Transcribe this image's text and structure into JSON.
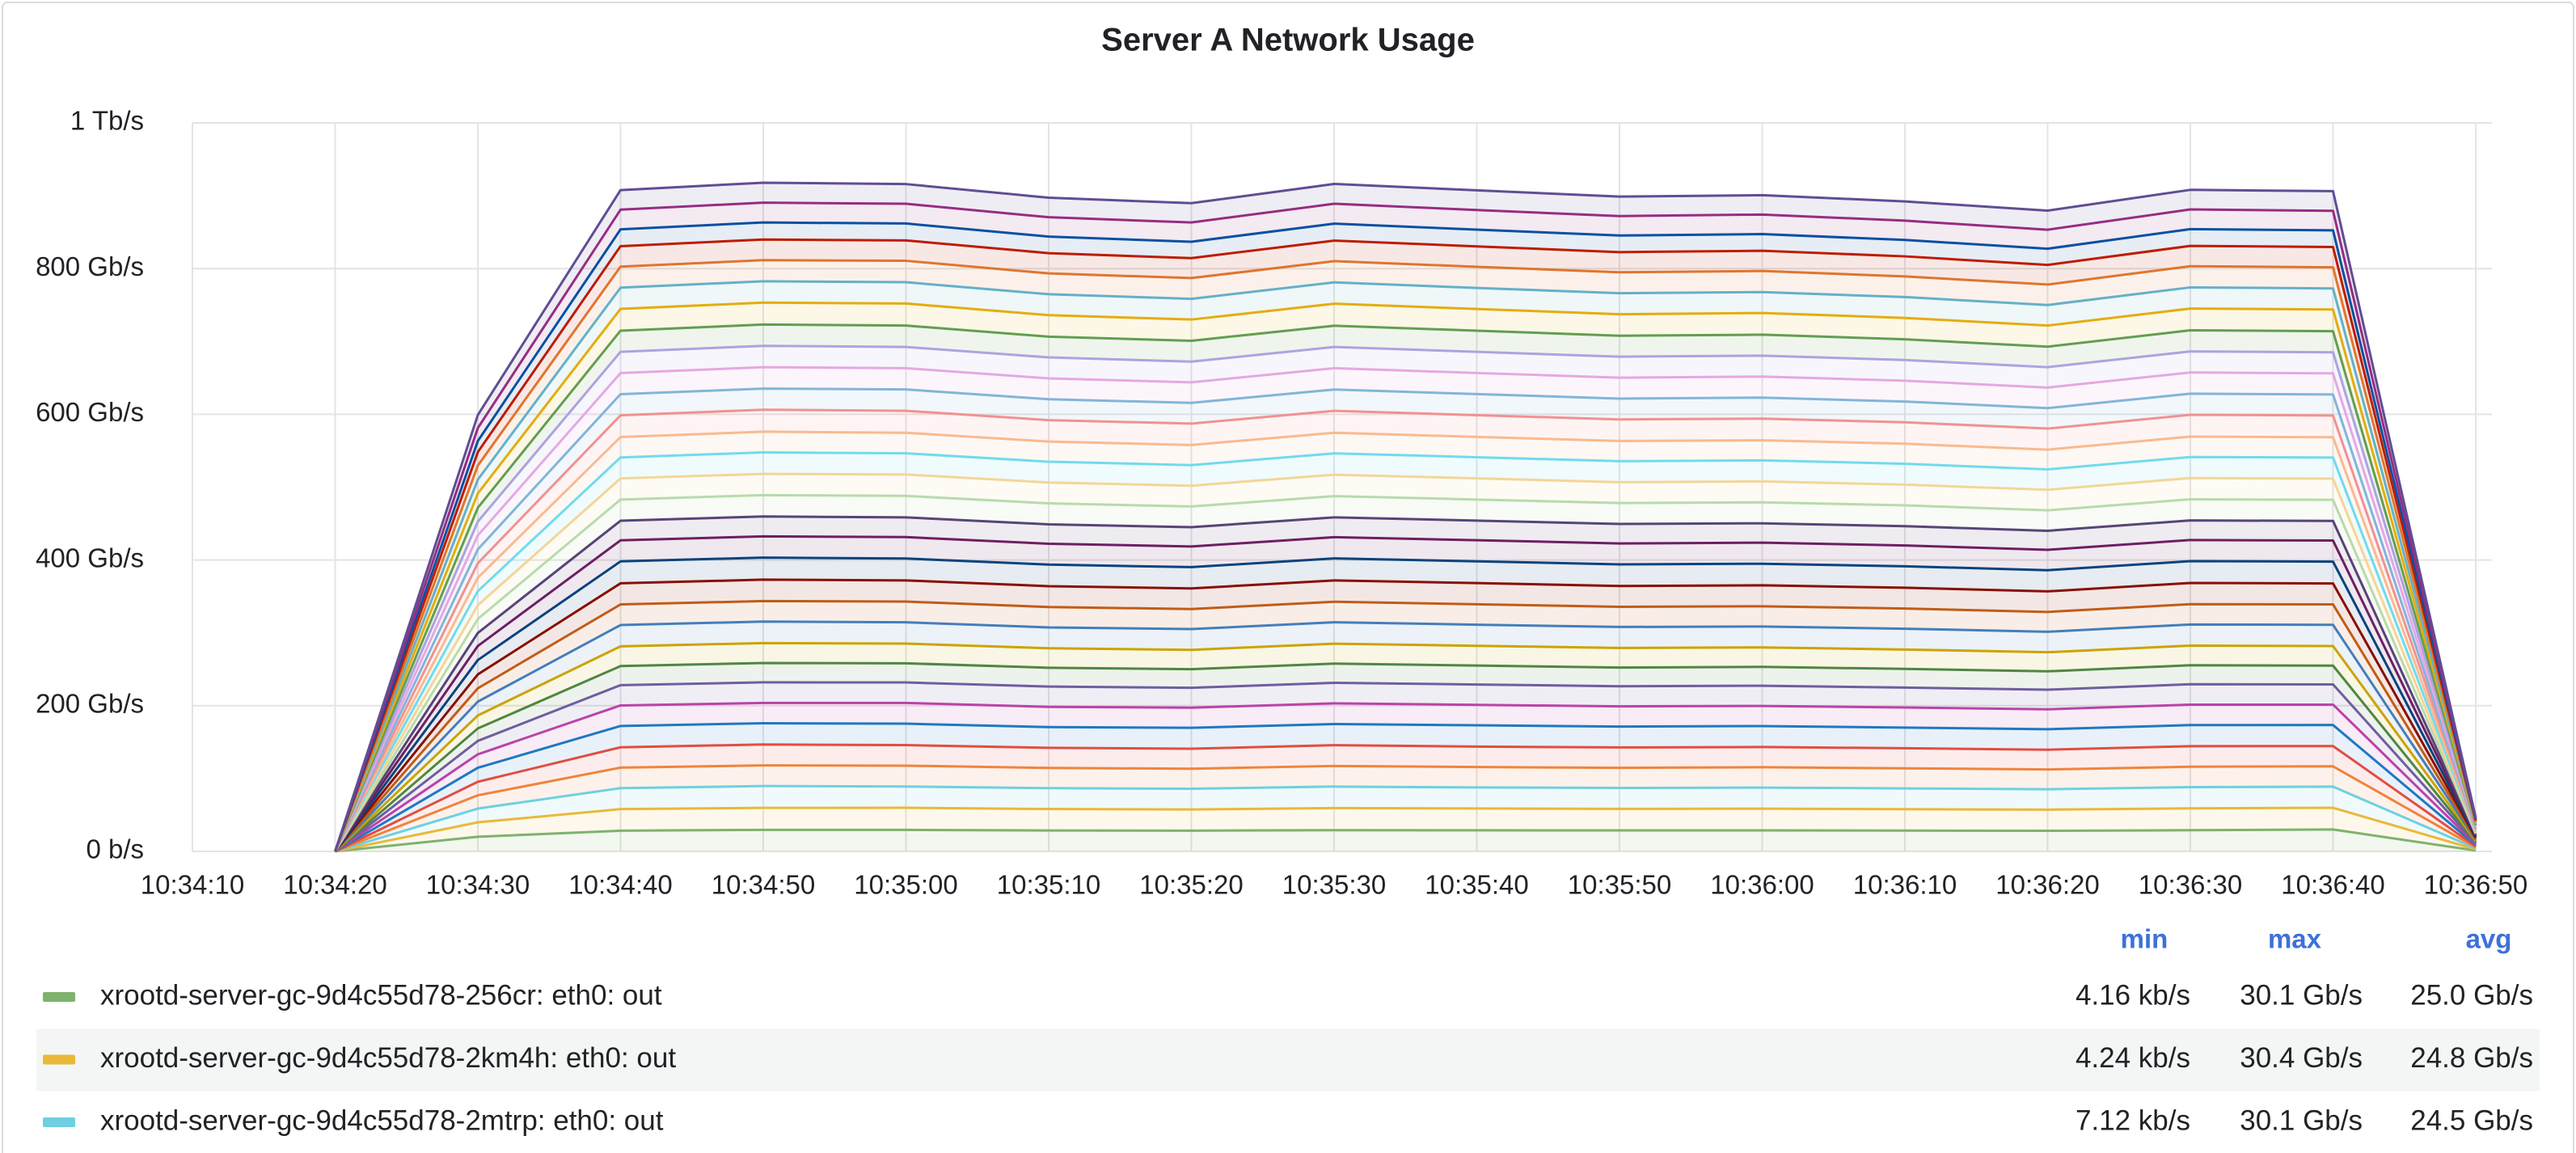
{
  "chart_data": {
    "type": "stacked-area",
    "title": "Server A Network Usage",
    "x": [
      "10:34:20",
      "10:34:30",
      "10:34:40",
      "10:34:50",
      "10:35:00",
      "10:35:10",
      "10:35:20",
      "10:35:30",
      "10:35:40",
      "10:35:50",
      "10:36:00",
      "10:36:10",
      "10:36:20",
      "10:36:30",
      "10:36:40",
      "10:36:50"
    ],
    "xlim": [
      "10:34:10",
      "10:36:50"
    ],
    "xticks": [
      "10:34:10",
      "10:34:20",
      "10:34:30",
      "10:34:40",
      "10:34:50",
      "10:35:00",
      "10:35:10",
      "10:35:20",
      "10:35:30",
      "10:35:40",
      "10:35:50",
      "10:36:00",
      "10:36:10",
      "10:36:20",
      "10:36:30",
      "10:36:40",
      "10:36:50"
    ],
    "ylim": [
      0,
      1000
    ],
    "yticks": [
      {
        "value": 0,
        "label": "0 b/s"
      },
      {
        "value": 200,
        "label": "200 Gb/s"
      },
      {
        "value": 400,
        "label": "400 Gb/s"
      },
      {
        "value": 600,
        "label": "600 Gb/s"
      },
      {
        "value": 800,
        "label": "800 Gb/s"
      },
      {
        "value": 1000,
        "label": "1 Tb/s"
      }
    ],
    "grid": true,
    "fill_opacity": 0.1,
    "legend_columns": [
      "min",
      "max",
      "avg"
    ],
    "series": [
      {
        "name": "xrootd-server-gc-9d4c55d78-256cr: eth0: out",
        "stats": [
          "4.16 kb/s",
          "30.1 Gb/s",
          "25.0 Gb/s"
        ],
        "color": "#7EB26D",
        "values": [
          0,
          20.1,
          28.4,
          29.6,
          29.5,
          28.7,
          28.5,
          29.2,
          29.0,
          28.8,
          28.9,
          28.6,
          28.3,
          29.1,
          30.1,
          1.2
        ]
      },
      {
        "name": "xrootd-server-gc-9d4c55d78-2km4h: eth0: out",
        "stats": [
          "4.24 kb/s",
          "30.4 Gb/s",
          "24.8 Gb/s"
        ],
        "color": "#EAB839",
        "values": [
          0,
          19.8,
          29.7,
          30.2,
          30.4,
          29.5,
          29.1,
          30.3,
          29.9,
          29.6,
          29.8,
          29.4,
          29.0,
          30.0,
          29.8,
          1.6
        ]
      },
      {
        "name": "xrootd-server-gc-9d4c55d78-2mtrp: eth0: out",
        "stats": [
          "7.12 kb/s",
          "30.1 Gb/s",
          "24.5 Gb/s"
        ],
        "color": "#6ED0E0",
        "values": [
          0,
          18.9,
          28.8,
          29.9,
          29.2,
          28.6,
          28.4,
          29.5,
          28.9,
          28.7,
          28.9,
          28.5,
          28.0,
          29.1,
          29.0,
          1.4
        ]
      },
      {
        "color": "#EF843C",
        "values": [
          0,
          18.2,
          28.1,
          28.4,
          28.6,
          27.8,
          27.5,
          28.3,
          28.0,
          27.7,
          27.9,
          27.6,
          27.2,
          28.0,
          27.9,
          1.5
        ]
      },
      {
        "color": "#E24D42",
        "values": [
          0,
          18.6,
          27.9,
          28.7,
          28.2,
          27.6,
          27.4,
          28.5,
          28.1,
          27.9,
          27.8,
          27.5,
          27.1,
          28.2,
          27.8,
          1.3
        ]
      },
      {
        "color": "#1F78C1",
        "values": [
          0,
          19.2,
          29.3,
          29.1,
          29.4,
          28.5,
          28.8,
          29.0,
          29.2,
          28.6,
          28.8,
          28.4,
          28.1,
          29.0,
          28.9,
          1.6
        ]
      },
      {
        "color": "#BA43A9",
        "values": [
          0,
          18.5,
          28.2,
          27.9,
          28.5,
          27.7,
          27.6,
          28.4,
          28.1,
          27.8,
          27.6,
          27.5,
          27.3,
          28.1,
          28.0,
          1.4
        ]
      },
      {
        "color": "#705DA0",
        "values": [
          0,
          18.4,
          27.8,
          28.3,
          28.1,
          27.9,
          27.3,
          28.2,
          27.9,
          27.6,
          27.7,
          27.4,
          27.0,
          27.9,
          27.7,
          1.5
        ]
      },
      {
        "color": "#508642",
        "values": [
          0,
          17.1,
          26.2,
          26.5,
          26.3,
          25.8,
          25.5,
          26.4,
          26.0,
          25.7,
          25.9,
          25.6,
          25.2,
          26.1,
          25.8,
          1.3
        ]
      },
      {
        "color": "#CCA300",
        "values": [
          0,
          17.8,
          27.1,
          27.4,
          27.0,
          26.8,
          26.6,
          27.3,
          27.1,
          26.9,
          26.7,
          26.6,
          26.2,
          27.0,
          26.9,
          1.4
        ]
      },
      {
        "color": "#447EBC",
        "values": [
          0,
          19.0,
          29.2,
          29.5,
          29.3,
          28.6,
          28.5,
          29.4,
          29.0,
          28.8,
          28.7,
          28.6,
          28.1,
          29.0,
          29.1,
          1.5
        ]
      },
      {
        "color": "#C15C17",
        "values": [
          0,
          18.3,
          28.3,
          28.1,
          28.4,
          27.9,
          27.5,
          28.2,
          28.0,
          27.6,
          27.8,
          27.7,
          27.2,
          27.9,
          28.0,
          1.4
        ]
      },
      {
        "color": "#890F02",
        "values": [
          0,
          19.1,
          29.0,
          29.4,
          29.1,
          28.7,
          28.3,
          29.3,
          29.1,
          28.6,
          28.8,
          28.5,
          28.2,
          29.1,
          28.8,
          1.6
        ]
      },
      {
        "color": "#0A437C",
        "values": [
          0,
          19.7,
          30.1,
          30.3,
          30.0,
          29.6,
          29.2,
          30.2,
          29.9,
          29.7,
          29.6,
          29.5,
          29.1,
          29.9,
          30.0,
          1.5
        ]
      },
      {
        "color": "#6D1F62",
        "values": [
          0,
          19.3,
          28.9,
          29.2,
          29.4,
          28.6,
          28.4,
          29.1,
          29.0,
          28.7,
          28.9,
          28.5,
          28.0,
          29.0,
          28.9,
          1.4
        ]
      },
      {
        "color": "#584477",
        "values": [
          0,
          17.9,
          26.9,
          27.3,
          27.1,
          26.7,
          26.5,
          27.2,
          26.9,
          26.8,
          26.6,
          26.5,
          26.1,
          26.9,
          27.0,
          1.3
        ]
      },
      {
        "color": "#B7DBAB",
        "values": [
          0,
          19.2,
          29.1,
          29.3,
          29.5,
          28.8,
          28.4,
          29.2,
          28.9,
          28.7,
          28.8,
          28.6,
          28.1,
          29.0,
          28.9,
          1.5
        ]
      },
      {
        "color": "#F4D598",
        "values": [
          0,
          18.8,
          29.0,
          29.1,
          29.3,
          28.6,
          28.5,
          29.4,
          29.1,
          28.6,
          28.7,
          28.4,
          28.2,
          29.2,
          29.0,
          1.4
        ]
      },
      {
        "color": "#70DBED",
        "values": [
          0,
          19.4,
          28.8,
          29.5,
          29.2,
          28.5,
          28.3,
          29.3,
          29.0,
          28.8,
          28.9,
          28.7,
          28.0,
          28.9,
          29.1,
          1.6
        ]
      },
      {
        "color": "#F9BA8F",
        "values": [
          0,
          18.4,
          28.0,
          28.4,
          28.2,
          27.7,
          27.6,
          28.3,
          27.9,
          27.8,
          27.6,
          27.5,
          27.1,
          28.0,
          27.9,
          1.5
        ]
      },
      {
        "color": "#F29191",
        "values": [
          0,
          19.9,
          29.8,
          30.2,
          30.1,
          29.4,
          29.3,
          30.1,
          29.8,
          29.6,
          29.7,
          29.4,
          28.9,
          29.9,
          29.8,
          1.6
        ]
      },
      {
        "color": "#82B5D8",
        "values": [
          0,
          19.0,
          29.1,
          29.0,
          29.3,
          28.7,
          28.5,
          29.2,
          29.0,
          28.6,
          28.8,
          28.5,
          28.1,
          29.0,
          28.8,
          1.5
        ]
      },
      {
        "color": "#E5A8E2",
        "values": [
          0,
          19.2,
          28.9,
          29.4,
          29.2,
          28.6,
          28.2,
          29.3,
          28.9,
          28.7,
          28.9,
          28.6,
          28.2,
          29.1,
          29.0,
          1.4
        ]
      },
      {
        "color": "#AEA2E0",
        "values": [
          0,
          18.9,
          29.2,
          29.3,
          29.1,
          28.8,
          28.4,
          29.1,
          29.0,
          28.8,
          28.7,
          28.4,
          28.0,
          28.9,
          28.9,
          1.5
        ]
      },
      {
        "color": "#629E51",
        "values": [
          0,
          19.1,
          29.0,
          29.2,
          29.4,
          28.5,
          28.6,
          29.2,
          29.1,
          28.7,
          28.8,
          28.5,
          28.1,
          29.0,
          29.0,
          1.4
        ]
      },
      {
        "color": "#E5AC0E",
        "values": [
          0,
          19.6,
          29.9,
          30.1,
          30.3,
          29.5,
          29.2,
          30.2,
          29.8,
          29.6,
          29.8,
          29.3,
          29.0,
          29.9,
          29.8,
          1.6
        ]
      },
      {
        "color": "#64B0C8",
        "values": [
          0,
          19.0,
          29.1,
          29.3,
          29.2,
          28.7,
          28.4,
          29.3,
          28.9,
          28.8,
          28.7,
          28.6,
          28.2,
          29.0,
          28.9,
          1.5
        ]
      },
      {
        "color": "#E0752D",
        "values": [
          0,
          19.3,
          28.9,
          29.0,
          29.4,
          28.6,
          28.5,
          29.1,
          29.0,
          28.7,
          28.9,
          28.4,
          28.1,
          29.1,
          29.0,
          1.4
        ]
      },
      {
        "color": "#BF1B00",
        "values": [
          0,
          18.5,
          28.1,
          28.3,
          28.0,
          27.8,
          27.4,
          28.2,
          28.0,
          27.7,
          27.8,
          27.5,
          27.0,
          27.9,
          27.8,
          1.5
        ]
      },
      {
        "color": "#0A50A1",
        "values": [
          0,
          15.2,
          23.1,
          23.4,
          23.2,
          22.7,
          22.5,
          23.3,
          23.0,
          22.8,
          22.9,
          22.5,
          22.2,
          23.0,
          22.9,
          1.2
        ]
      },
      {
        "color": "#962D82",
        "values": [
          0,
          17.8,
          27.0,
          27.2,
          27.1,
          26.6,
          26.4,
          27.3,
          26.9,
          26.7,
          26.8,
          26.5,
          26.1,
          27.0,
          26.8,
          1.4
        ]
      },
      {
        "color": "#614D93",
        "values": [
          0,
          17.9,
          26.9,
          27.4,
          27.0,
          26.8,
          26.5,
          27.2,
          27.0,
          26.7,
          26.6,
          26.4,
          26.2,
          26.9,
          27.0,
          1.5
        ]
      }
    ]
  }
}
